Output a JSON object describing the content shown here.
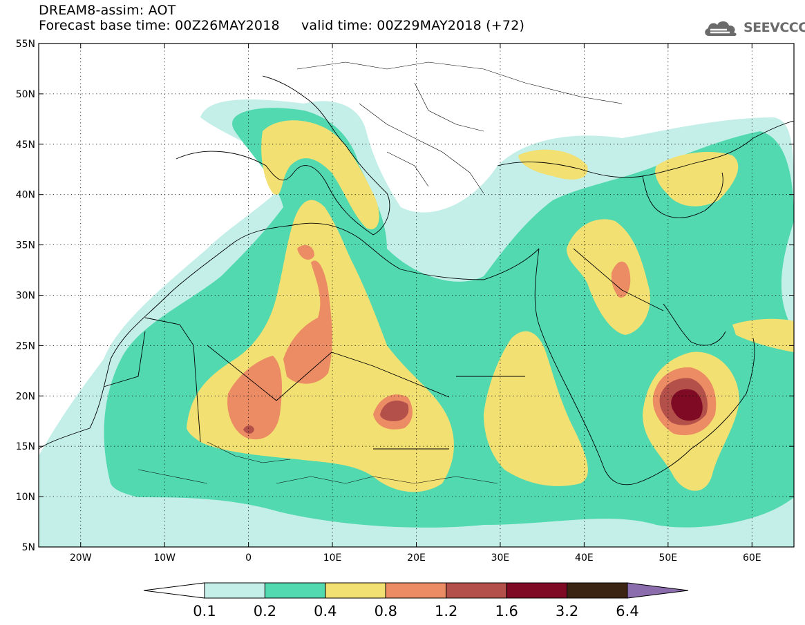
{
  "header": {
    "line1": "DREAM8-assim: AOT",
    "line2": "Forecast base time: 00Z26MAY2018     valid time: 00Z29MAY2018 (+72)"
  },
  "logo": {
    "icon": "cloud-icon",
    "text": "SEEVCCC"
  },
  "axes": {
    "lat_labels": [
      "55N",
      "50N",
      "45N",
      "40N",
      "35N",
      "30N",
      "25N",
      "20N",
      "15N",
      "10N",
      "5N"
    ],
    "lon_labels": [
      "20W",
      "10W",
      "0",
      "10E",
      "20E",
      "30E",
      "40E",
      "50E",
      "60E"
    ]
  },
  "colorbar": {
    "labels": [
      "0.1",
      "0.2",
      "0.4",
      "0.8",
      "1.2",
      "1.6",
      "3.2",
      "6.4"
    ],
    "colors": [
      "#c3efe8",
      "#52d9b0",
      "#f2e072",
      "#ec8c64",
      "#b4504a",
      "#7e0a24",
      "#3c2412",
      "#8b6cac"
    ],
    "under_color": "#ffffff"
  },
  "map_colors": {
    "land_border": "#000000",
    "grid": "#000000"
  }
}
